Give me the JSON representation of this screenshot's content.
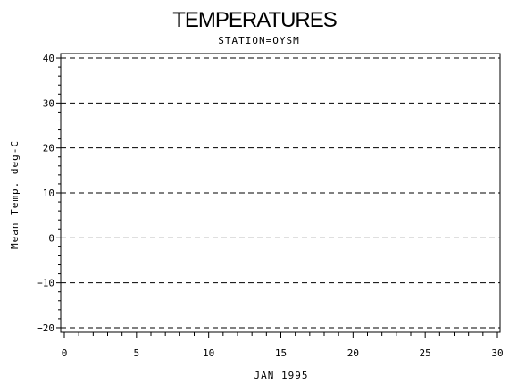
{
  "chart_data": {
    "type": "line",
    "title": "TEMPERATURES",
    "subtitle": "STATION=OYSM",
    "xlabel": "JAN 1995",
    "ylabel": "Mean Temp. deg-C",
    "xlim": [
      0,
      30
    ],
    "ylim": [
      -21,
      41
    ],
    "x_ticks": [
      0,
      5,
      10,
      15,
      20,
      25,
      30
    ],
    "y_ticks": [
      -20,
      -10,
      0,
      10,
      20,
      30,
      40
    ],
    "grid": "horizontal-dashed",
    "series": []
  }
}
